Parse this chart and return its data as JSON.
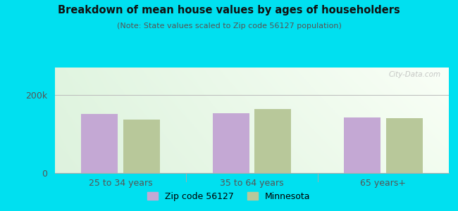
{
  "title": "Breakdown of mean house values by ages of householders",
  "subtitle": "(Note: State values scaled to Zip code 56127 population)",
  "categories": [
    "25 to 34 years",
    "35 to 64 years",
    "65 years+"
  ],
  "zip_values": [
    152000,
    153000,
    143000
  ],
  "state_values": [
    136000,
    163000,
    140000
  ],
  "ylim": [
    0,
    270000
  ],
  "ytick_labels": [
    "0",
    "200k"
  ],
  "ytick_vals": [
    0,
    200000
  ],
  "zip_color": "#c4a8d4",
  "state_color": "#b8c89a",
  "background_outer": "#00e0f0",
  "zip_label": "Zip code 56127",
  "state_label": "Minnesota",
  "bar_width": 0.28,
  "watermark": "City-Data.com",
  "title_color": "#111111",
  "subtitle_color": "#555555",
  "tick_color": "#555555"
}
